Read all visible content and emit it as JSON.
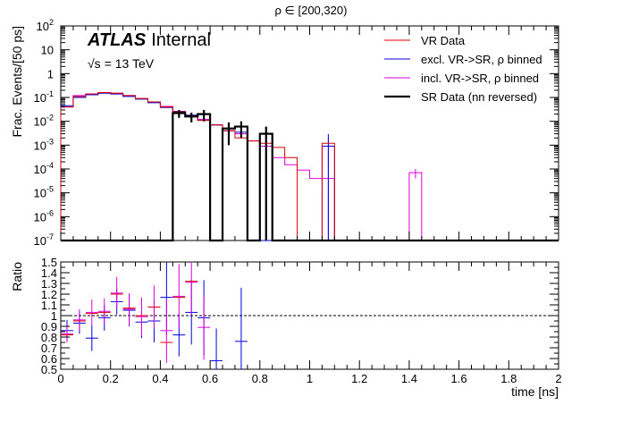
{
  "chart_data": [
    {
      "type": "step-histogram",
      "title": "ρ ∈ [200,320)",
      "ylabel": "Frac. Events/[50 ps]",
      "xlabel": "time [ns]",
      "xlim": [
        0,
        2
      ],
      "ylim_log10": [
        -7,
        2
      ],
      "yscale": "log",
      "atlas_label": {
        "bold": "ATLAS",
        "rest": "Internal"
      },
      "energy_label": {
        "sqrt": "√s",
        "rest": "= 13 TeV"
      },
      "x_ticks": [
        "0",
        "0.2",
        "0.4",
        "0.6",
        "0.8",
        "1",
        "1.2",
        "1.4",
        "1.6",
        "1.8",
        "2"
      ],
      "y_ticks": [
        {
          "exp": -7,
          "label": "10",
          "sup": "-7"
        },
        {
          "exp": -6,
          "label": "10",
          "sup": "-6"
        },
        {
          "exp": -5,
          "label": "10",
          "sup": "-5"
        },
        {
          "exp": -4,
          "label": "10",
          "sup": "-4"
        },
        {
          "exp": -3,
          "label": "10",
          "sup": "-3"
        },
        {
          "exp": -2,
          "label": "10",
          "sup": "-2"
        },
        {
          "exp": -1,
          "label": "10",
          "sup": "-1"
        },
        {
          "exp": 0,
          "label": "1",
          "sup": ""
        },
        {
          "exp": 1,
          "label": "10",
          "sup": ""
        },
        {
          "exp": 2,
          "label": "10",
          "sup": "2"
        }
      ],
      "legend": [
        {
          "label": "VR Data",
          "color": "#dd0000"
        },
        {
          "label": "excl. VR->SR, ρ binned",
          "color": "#0000dd"
        },
        {
          "label": "incl. VR->SR, ρ binned",
          "color": "#dd00dd"
        },
        {
          "label": "SR Data (nn reversed)",
          "color": "#000000"
        }
      ],
      "bin_edges": [
        0.0,
        0.05,
        0.1,
        0.15,
        0.2,
        0.25,
        0.3,
        0.35,
        0.4,
        0.45,
        0.5,
        0.55,
        0.6,
        0.65,
        0.7,
        0.75,
        0.8,
        0.85,
        0.9,
        0.95,
        1.0,
        1.05,
        1.1,
        1.15,
        1.2,
        1.25,
        1.3,
        1.35,
        1.4,
        1.45,
        1.5,
        1.55,
        1.6,
        1.65,
        1.7,
        1.75,
        1.8,
        1.85,
        1.9,
        1.95,
        2.0
      ],
      "series": [
        {
          "name": "VR Data",
          "color": "#dd0000",
          "values": [
            0.04,
            0.11,
            0.14,
            0.16,
            0.15,
            0.12,
            0.09,
            0.065,
            0.04,
            0.025,
            0.017,
            0.011,
            0.007,
            0.004,
            0.002,
            0.0015,
            0.0012,
            0.0008,
            0.0003,
            0,
            0,
            0.0012,
            0,
            0,
            0,
            0,
            0,
            0,
            0,
            0,
            0,
            0,
            0,
            0,
            0,
            0,
            0,
            0,
            0,
            0
          ],
          "errors": []
        },
        {
          "name": "excl. VR->SR, ρ binned",
          "color": "#0000dd",
          "values": [
            0.045,
            0.1,
            0.13,
            0.15,
            0.14,
            0.11,
            0.085,
            0.06,
            0.038,
            0.026,
            0.018,
            0.011,
            0.007,
            0.004,
            0.0035,
            0,
            0,
            0,
            0,
            0,
            0,
            0.0009,
            0,
            0,
            0,
            0,
            0,
            0,
            0,
            0,
            0,
            0,
            0,
            0,
            0,
            0,
            0,
            0,
            0,
            0
          ],
          "errors": [
            0,
            0,
            0,
            0,
            0,
            0,
            0,
            0,
            0,
            0,
            0,
            0,
            0,
            0,
            0,
            0,
            0,
            0,
            0,
            0,
            0,
            0.002,
            0,
            0,
            0,
            0,
            0,
            0,
            0,
            0,
            0,
            0,
            0,
            0,
            0,
            0,
            0,
            0,
            0,
            0
          ]
        },
        {
          "name": "incl. VR->SR, ρ binned",
          "color": "#dd00dd",
          "values": [
            0.04,
            0.12,
            0.14,
            0.16,
            0.15,
            0.12,
            0.09,
            0.065,
            0.042,
            0.026,
            0.018,
            0.012,
            0.007,
            0.004,
            0.003,
            0.0015,
            0.0009,
            0.0003,
            0.00015,
            9e-05,
            4e-05,
            4e-05,
            0,
            0,
            0,
            0,
            0,
            0,
            7e-05,
            0,
            0,
            0,
            0,
            0,
            0,
            0,
            0,
            0,
            0,
            0
          ],
          "errors": [
            0,
            0,
            0,
            0,
            0,
            0,
            0,
            0,
            0,
            0,
            0,
            0,
            0,
            0,
            0,
            0,
            0,
            0,
            0,
            0,
            0,
            0.002,
            0,
            0,
            0,
            0,
            0,
            0,
            3e-05,
            0,
            0,
            0,
            0,
            0,
            0,
            0,
            0,
            0,
            0,
            0
          ]
        },
        {
          "name": "SR Data (nn reversed)",
          "color": "#000000",
          "values": [
            0,
            0,
            0,
            0,
            0,
            0,
            0,
            0,
            0,
            0.022,
            0.016,
            0.02,
            0,
            0.005,
            0.006,
            0,
            0.003,
            0,
            0,
            0,
            0,
            0,
            0,
            0,
            0,
            0,
            0,
            0,
            0,
            0,
            0,
            0,
            0,
            0,
            0,
            0,
            0,
            0,
            0,
            0
          ],
          "errors": [
            0,
            0,
            0,
            0,
            0,
            0,
            0,
            0,
            0,
            0.008,
            0.007,
            0.01,
            0,
            0.004,
            0.004,
            0,
            0.003,
            0,
            0,
            0,
            0,
            0,
            0,
            0,
            0,
            0,
            0,
            0,
            0,
            0,
            0,
            0,
            0,
            0,
            0,
            0,
            0,
            0,
            0,
            0
          ]
        }
      ]
    },
    {
      "type": "ratio-errorbar",
      "ylabel": "Ratio",
      "xlabel": "time [ns]",
      "xlim": [
        0,
        2
      ],
      "ylim": [
        0.5,
        1.5
      ],
      "reference_line": 1,
      "x_ticks": [
        "0",
        "0.2",
        "0.4",
        "0.6",
        "0.8",
        "1",
        "1.2",
        "1.4",
        "1.6",
        "1.8",
        "2"
      ],
      "y_ticks": [
        "0.5",
        "0.6",
        "0.7",
        "0.8",
        "0.9",
        "1",
        "1.1",
        "1.2",
        "1.3",
        "1.4",
        "1.5"
      ],
      "series": [
        {
          "name": "excl. VR->SR, ρ binned",
          "color": "#0000dd",
          "points": [
            {
              "x": 0.025,
              "y": 0.86,
              "err": 0.1
            },
            {
              "x": 0.075,
              "y": 0.93,
              "err": 0.1
            },
            {
              "x": 0.125,
              "y": 0.79,
              "err": 0.12
            },
            {
              "x": 0.175,
              "y": 0.98,
              "err": 0.12
            },
            {
              "x": 0.225,
              "y": 1.13,
              "err": 0.12
            },
            {
              "x": 0.275,
              "y": 1.05,
              "err": 0.15
            },
            {
              "x": 0.325,
              "y": 0.94,
              "err": 0.15
            },
            {
              "x": 0.375,
              "y": 0.95,
              "err": 0.2
            },
            {
              "x": 0.425,
              "y": 1.17,
              "err": 0.35
            },
            {
              "x": 0.475,
              "y": 0.82,
              "err": 0.2
            },
            {
              "x": 0.525,
              "y": 1.03,
              "err": 0.3
            },
            {
              "x": 0.575,
              "y": 0.98,
              "err": 0.35
            },
            {
              "x": 0.625,
              "y": 0.58,
              "err": 0.3
            },
            {
              "x": 0.725,
              "y": 0.76,
              "err": 0.5
            }
          ]
        },
        {
          "name": "incl. VR->SR, ρ binned",
          "color": "#dd00dd",
          "points": [
            {
              "x": 0.025,
              "y": 0.83,
              "err": 0.08
            },
            {
              "x": 0.075,
              "y": 0.96,
              "err": 0.1
            },
            {
              "x": 0.125,
              "y": 1.03,
              "err": 0.12
            },
            {
              "x": 0.175,
              "y": 1.04,
              "err": 0.12
            },
            {
              "x": 0.225,
              "y": 1.21,
              "err": 0.15
            },
            {
              "x": 0.275,
              "y": 1.06,
              "err": 0.15
            },
            {
              "x": 0.325,
              "y": 0.99,
              "err": 0.18
            },
            {
              "x": 0.375,
              "y": 1.08,
              "err": 0.2
            },
            {
              "x": 0.425,
              "y": 0.86,
              "err": 0.3
            },
            {
              "x": 0.475,
              "y": 1.18,
              "err": 0.3
            },
            {
              "x": 0.525,
              "y": 1.31,
              "err": 0.3
            },
            {
              "x": 0.575,
              "y": 0.89,
              "err": 0.3
            }
          ]
        },
        {
          "name": "VR Data",
          "color": "#dd0000",
          "points": [
            {
              "x": 0.025,
              "y": 0.82,
              "err": 0
            },
            {
              "x": 0.075,
              "y": 0.95,
              "err": 0
            },
            {
              "x": 0.125,
              "y": 1.02,
              "err": 0
            },
            {
              "x": 0.175,
              "y": 1.03,
              "err": 0
            },
            {
              "x": 0.225,
              "y": 1.2,
              "err": 0
            },
            {
              "x": 0.275,
              "y": 1.07,
              "err": 0
            },
            {
              "x": 0.325,
              "y": 1.0,
              "err": 0
            },
            {
              "x": 0.375,
              "y": 1.08,
              "err": 0
            },
            {
              "x": 0.425,
              "y": 0.75,
              "err": 0
            },
            {
              "x": 0.475,
              "y": 1.17,
              "err": 0
            },
            {
              "x": 0.525,
              "y": 1.32,
              "err": 0
            }
          ]
        }
      ]
    }
  ]
}
